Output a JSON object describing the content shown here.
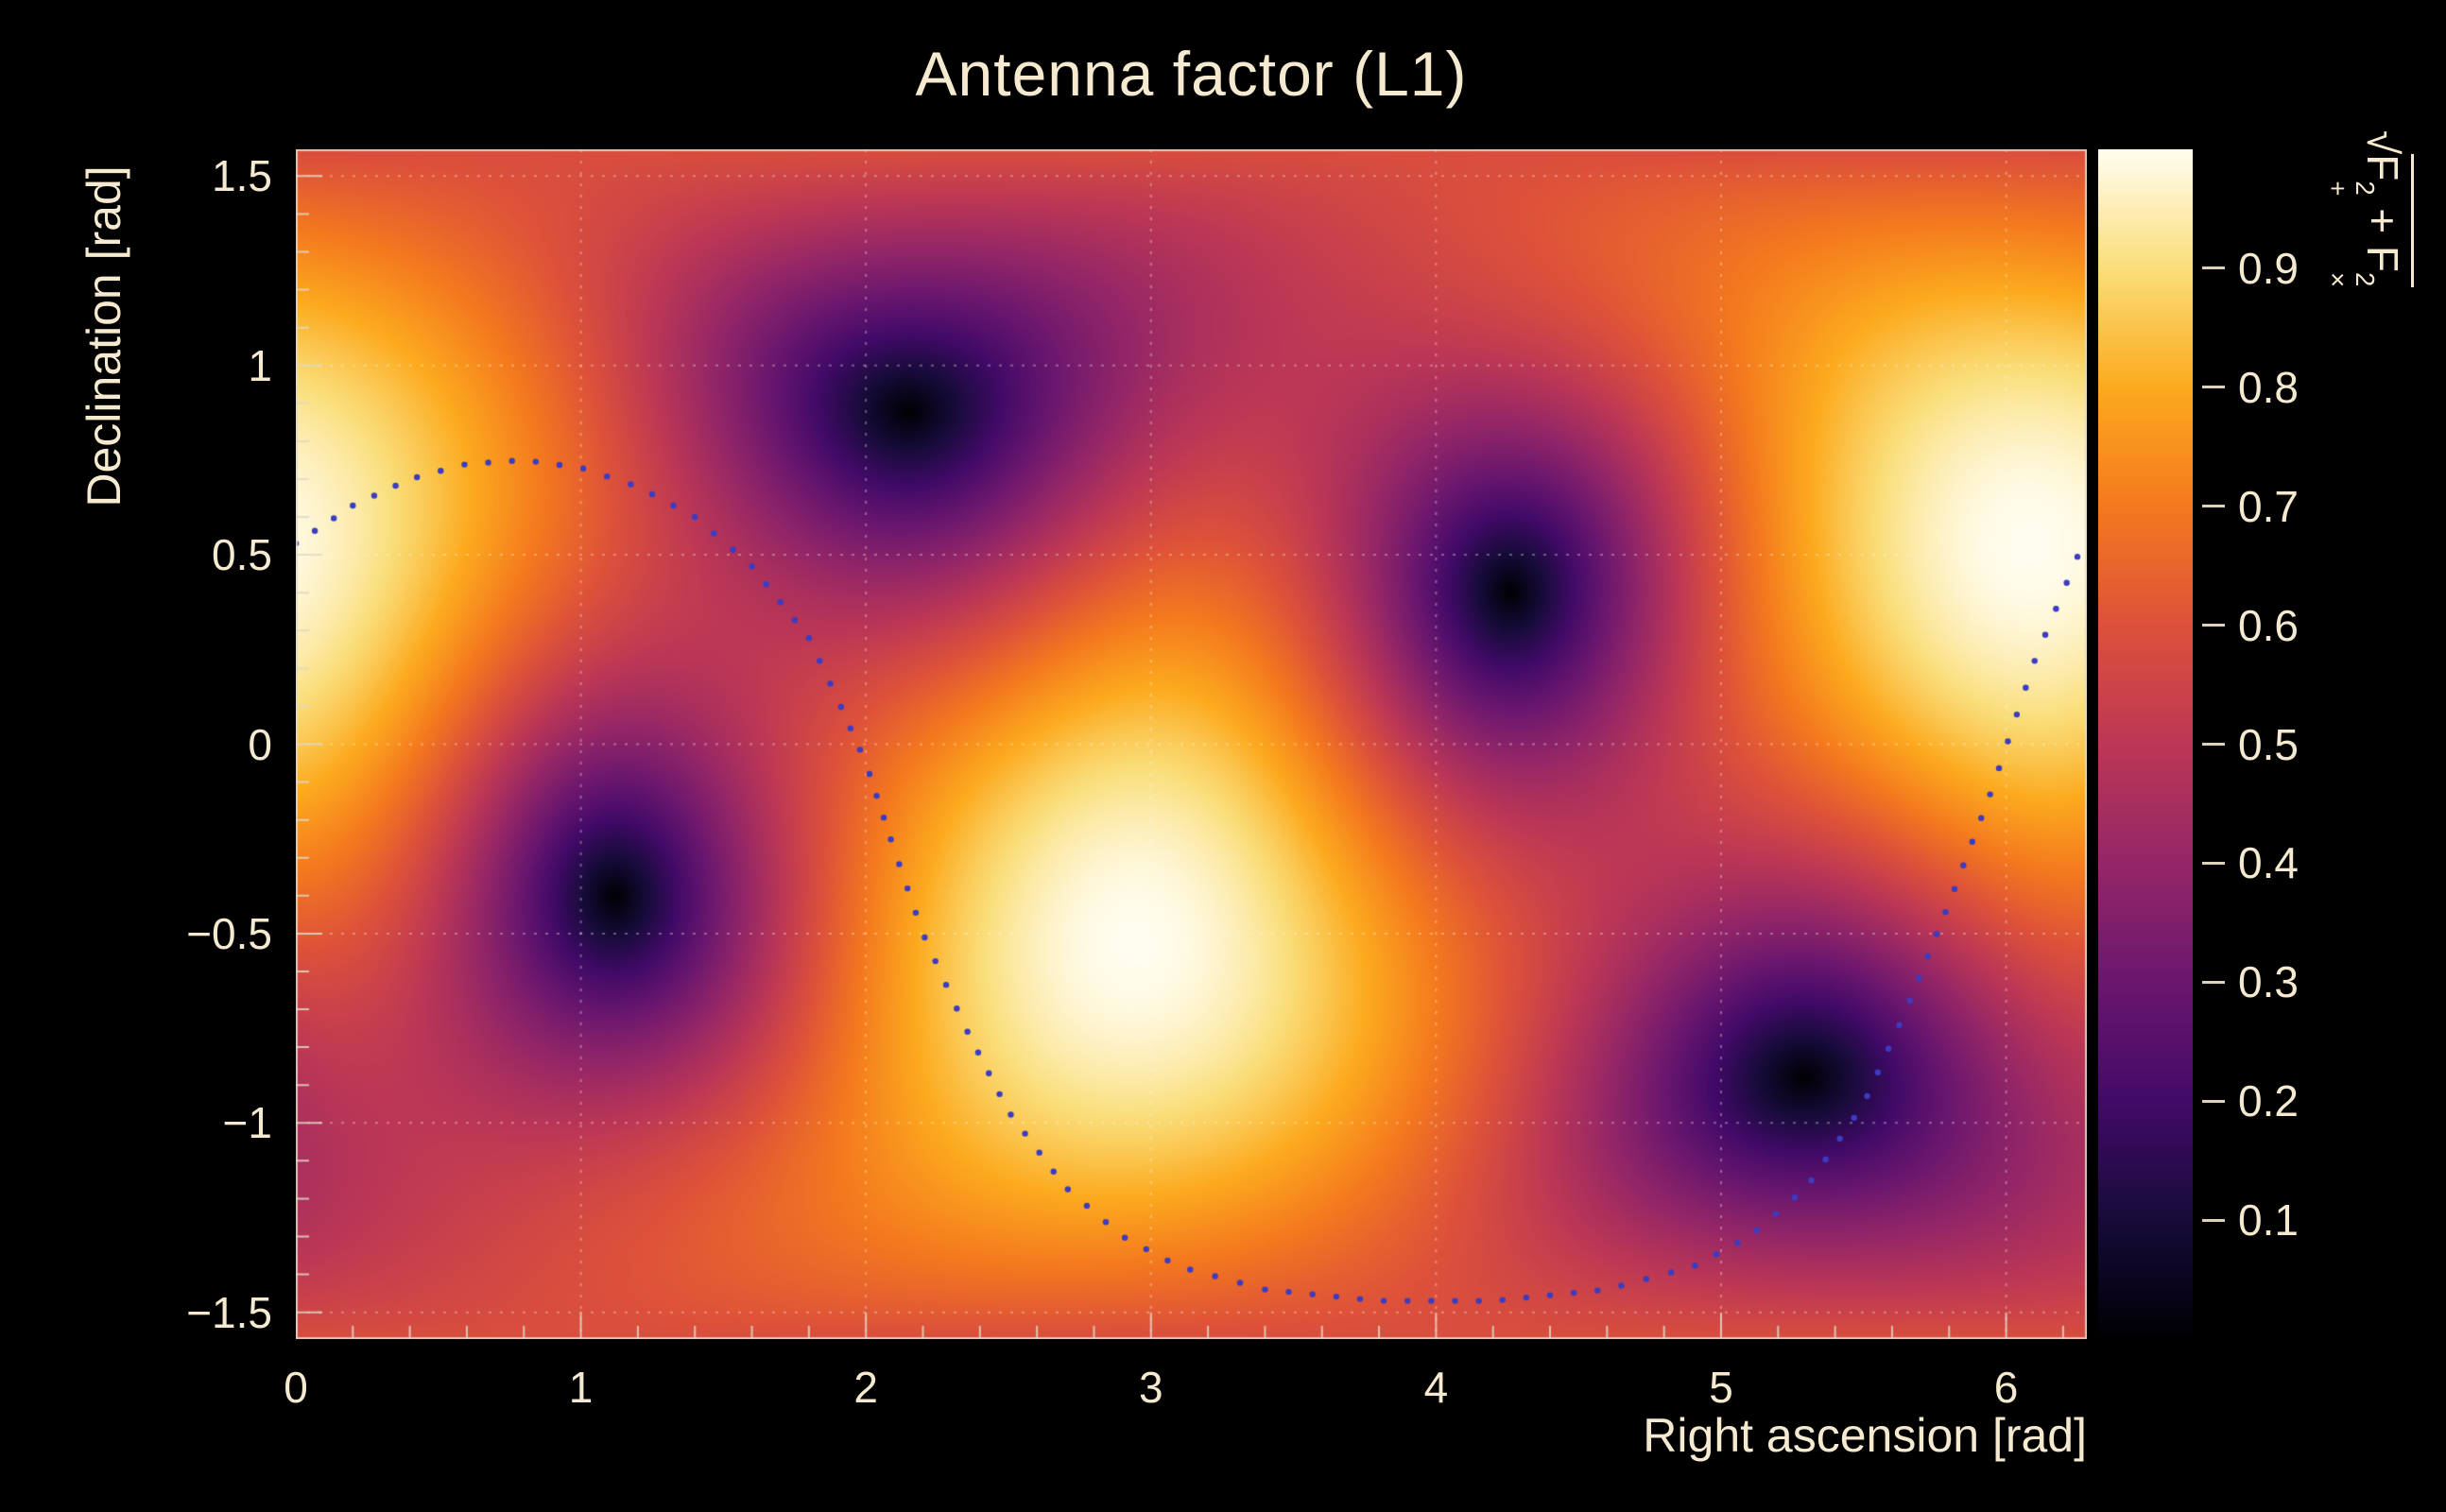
{
  "title": "Antenna factor (L1)",
  "colors": {
    "background": "#000000",
    "text": "#f5ead0",
    "frame": "#d9d2c0",
    "grid": "rgba(255,250,235,0.35)",
    "curve_dot": "#3c3cc0"
  },
  "chart_data": {
    "type": "heatmap",
    "title": "Antenna factor (L1)",
    "xlabel": "Right ascension [rad]",
    "ylabel": "Declination [rad]",
    "zlabel": "sqrt(F+^2 + Fx^2)",
    "zlabel_parts": {
      "radical": "√",
      "f1": "F",
      "f1_sup": "2",
      "f1_sub": "+",
      "plus": " + ",
      "f2": "F",
      "f2_sup": "2",
      "f2_sub": "×"
    },
    "x_range": [
      0,
      6.2832
    ],
    "y_range": [
      -1.5708,
      1.5708
    ],
    "z_range": [
      0,
      1
    ],
    "x_ticks": {
      "values": [
        0,
        1,
        2,
        3,
        4,
        5,
        6
      ],
      "labels": [
        "0",
        "1",
        "2",
        "3",
        "4",
        "5",
        "6"
      ],
      "minor_step": 0.2
    },
    "y_ticks": {
      "values": [
        1.5,
        1,
        0.5,
        0,
        -0.5,
        -1,
        -1.5
      ],
      "labels": [
        "1.5",
        "1",
        "0.5",
        "0",
        "−0.5",
        "−1",
        "−1.5"
      ],
      "minor_step": 0.1
    },
    "z_ticks": {
      "values": [
        0.9,
        0.8,
        0.7,
        0.6,
        0.5,
        0.4,
        0.3,
        0.2,
        0.1
      ],
      "labels": [
        "0.9",
        "0.8",
        "0.7",
        "0.6",
        "0.5",
        "0.4",
        "0.3",
        "0.2",
        "0.1"
      ]
    },
    "grid": true,
    "pattern": {
      "quantity": "single-detector antenna response sqrt(F+^2 + Fx^2), L1",
      "null_points": [
        [
          2.15,
          0.88
        ],
        [
          4.25,
          0.42
        ],
        [
          1.11,
          -0.42
        ],
        [
          5.29,
          -0.88
        ]
      ],
      "max_points": [
        [
          6.08,
          0.53
        ],
        [
          2.94,
          -0.53
        ]
      ],
      "z_min": 0.0,
      "z_max": 1.0
    },
    "colormap": [
      [
        0.0,
        0,
        0,
        3
      ],
      [
        0.1,
        22,
        11,
        57
      ],
      [
        0.2,
        66,
        10,
        104
      ],
      [
        0.3,
        107,
        23,
        110
      ],
      [
        0.4,
        148,
        38,
        103
      ],
      [
        0.5,
        188,
        55,
        85
      ],
      [
        0.6,
        221,
        81,
        58
      ],
      [
        0.7,
        244,
        121,
        30
      ],
      [
        0.8,
        252,
        170,
        30
      ],
      [
        0.9,
        250,
        222,
        122
      ],
      [
        1.0,
        255,
        253,
        240
      ]
    ],
    "overlay_curve": {
      "style": "dotted",
      "color": "#3c3cc0",
      "points": [
        [
          0.0,
          0.53
        ],
        [
          0.2,
          0.63
        ],
        [
          0.4,
          0.7
        ],
        [
          0.6,
          0.74
        ],
        [
          0.8,
          0.75
        ],
        [
          1.0,
          0.73
        ],
        [
          1.2,
          0.68
        ],
        [
          1.4,
          0.6
        ],
        [
          1.6,
          0.47
        ],
        [
          1.8,
          0.28
        ],
        [
          1.9,
          0.12
        ],
        [
          2.0,
          -0.05
        ],
        [
          2.1,
          -0.28
        ],
        [
          2.2,
          -0.5
        ],
        [
          2.35,
          -0.75
        ],
        [
          2.5,
          -0.97
        ],
        [
          2.7,
          -1.17
        ],
        [
          2.9,
          -1.3
        ],
        [
          3.1,
          -1.38
        ],
        [
          3.4,
          -1.44
        ],
        [
          3.8,
          -1.47
        ],
        [
          4.2,
          -1.47
        ],
        [
          4.6,
          -1.44
        ],
        [
          4.9,
          -1.38
        ],
        [
          5.1,
          -1.3
        ],
        [
          5.3,
          -1.17
        ],
        [
          5.5,
          -0.95
        ],
        [
          5.65,
          -0.7
        ],
        [
          5.8,
          -0.42
        ],
        [
          5.95,
          -0.12
        ],
        [
          6.1,
          0.22
        ],
        [
          6.28,
          0.55
        ]
      ]
    }
  }
}
